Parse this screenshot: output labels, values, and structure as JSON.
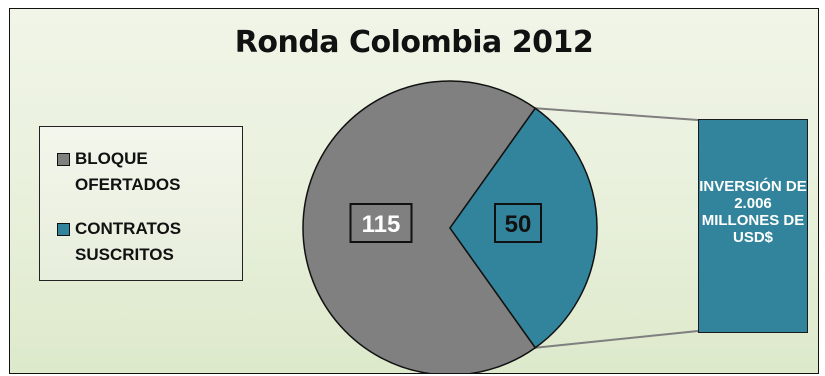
{
  "chart_data": {
    "type": "pie",
    "title": "Ronda Colombia 2012",
    "categories": [
      "BLOQUE OFERTADOS",
      "CONTRATOS SUSCRITOS"
    ],
    "values": [
      115,
      50
    ],
    "colors": [
      "#808080",
      "#31849b"
    ],
    "legend_position": "left",
    "callout": "INVERSIÓN DE 2.006 MILLONES DE USD$"
  }
}
